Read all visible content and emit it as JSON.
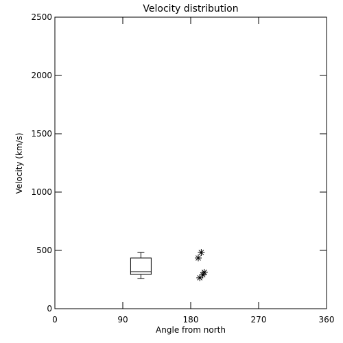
{
  "chart_data": {
    "type": "box",
    "title": "Velocity distribution",
    "xlabel": "Angle from north",
    "ylabel": "Velocity (km/s)",
    "xlim": [
      0,
      360
    ],
    "ylim": [
      0,
      2500
    ],
    "xticks": [
      0,
      90,
      180,
      270,
      360
    ],
    "yticks": [
      0,
      500,
      1000,
      1500,
      2000,
      2500
    ],
    "boxes": [
      {
        "x": 114,
        "min": 259,
        "q1": 294,
        "median": 318,
        "q3": 435,
        "max": 482
      }
    ],
    "points": {
      "x": [
        194,
        190,
        198,
        196,
        192
      ],
      "y": [
        482,
        435,
        312,
        290,
        265
      ]
    }
  }
}
